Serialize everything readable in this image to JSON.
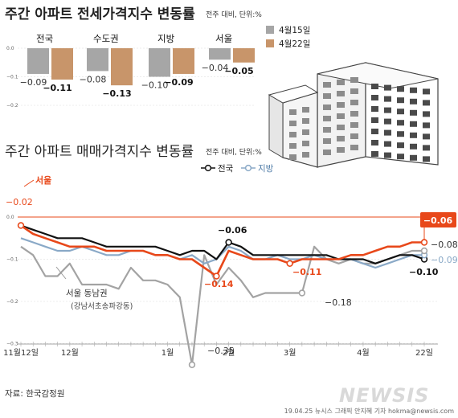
{
  "chart_data": [
    {
      "type": "bar",
      "title": "주간 아파트 전세가격지수 변동률",
      "unit_note": "전주 대비, 단위:%",
      "categories": [
        "전국",
        "수도권",
        "지방",
        "서울"
      ],
      "series": [
        {
          "name": "4월15일",
          "color": "#a6a6a6",
          "values": [
            -0.09,
            -0.08,
            -0.1,
            -0.04
          ]
        },
        {
          "name": "4월22일",
          "color": "#c8956a",
          "values": [
            -0.11,
            -0.13,
            -0.09,
            -0.05
          ]
        }
      ],
      "value_labels": [
        [
          "−0.09",
          "−0.08",
          "−0.10",
          "−0.04"
        ],
        [
          "−0.11",
          "−0.13",
          "−0.09",
          "−0.05"
        ]
      ],
      "yticks": [
        "0.0",
        "−0.1",
        "−0.2"
      ],
      "ylim": [
        -0.2,
        0.0
      ]
    },
    {
      "type": "line",
      "title": "주간 아파트 매매가격지수 변동률",
      "unit_note": "전주 대비, 단위:%",
      "x_labels": [
        "11월12일",
        "12월",
        "1월",
        "2월",
        "3월",
        "4월",
        "22일"
      ],
      "x_label_index": [
        0,
        4,
        12,
        17,
        22,
        28,
        33
      ],
      "yticks": [
        "0.0",
        "−0.1",
        "−0.2",
        "−0.3"
      ],
      "ylim": [
        -0.3,
        0.0
      ],
      "series": [
        {
          "name": "전국",
          "color": "#111111",
          "values": [
            -0.02,
            -0.03,
            -0.04,
            -0.05,
            -0.05,
            -0.05,
            -0.06,
            -0.07,
            -0.07,
            -0.07,
            -0.07,
            -0.07,
            -0.08,
            -0.09,
            -0.08,
            -0.08,
            -0.1,
            -0.06,
            -0.07,
            -0.09,
            -0.09,
            -0.09,
            -0.09,
            -0.09,
            -0.09,
            -0.09,
            -0.1,
            -0.1,
            -0.1,
            -0.11,
            -0.1,
            -0.09,
            -0.09,
            -0.1
          ]
        },
        {
          "name": "지방",
          "color": "#8aa9c7",
          "values": [
            -0.05,
            -0.06,
            -0.07,
            -0.08,
            -0.08,
            -0.07,
            -0.08,
            -0.09,
            -0.09,
            -0.08,
            -0.08,
            -0.09,
            -0.09,
            -0.1,
            -0.09,
            -0.11,
            -0.1,
            -0.07,
            -0.08,
            -0.1,
            -0.1,
            -0.09,
            -0.1,
            -0.1,
            -0.09,
            -0.1,
            -0.1,
            -0.1,
            -0.11,
            -0.12,
            -0.11,
            -0.1,
            -0.09,
            -0.09
          ]
        },
        {
          "name": "서울",
          "color": "#e8481a",
          "values": [
            -0.02,
            -0.04,
            -0.05,
            -0.06,
            -0.07,
            -0.07,
            -0.07,
            -0.08,
            -0.08,
            -0.08,
            -0.08,
            -0.09,
            -0.09,
            -0.1,
            -0.1,
            -0.12,
            -0.14,
            -0.08,
            -0.09,
            -0.1,
            -0.1,
            -0.1,
            -0.11,
            -0.1,
            -0.1,
            -0.1,
            -0.1,
            -0.09,
            -0.09,
            -0.08,
            -0.07,
            -0.07,
            -0.06,
            -0.06
          ]
        },
        {
          "name": "서울 동남권",
          "color": "#a3a3a3",
          "values": [
            -0.07,
            -0.09,
            -0.14,
            -0.14,
            -0.11,
            -0.16,
            -0.16,
            -0.16,
            -0.17,
            -0.12,
            -0.15,
            -0.15,
            -0.16,
            -0.19,
            -0.35,
            -0.09,
            -0.16,
            -0.12,
            -0.15,
            -0.19,
            -0.18,
            -0.18,
            -0.18,
            -0.18,
            -0.07,
            -0.1,
            -0.11,
            -0.1,
            -0.11,
            -0.11,
            -0.1,
            -0.09,
            -0.08,
            -0.08
          ]
        }
      ],
      "labels": {
        "seoul": "서울",
        "jeonguk": "전국",
        "jibang": "지방",
        "donam": "서울 동남권",
        "donam_sub": "(강남서초송파강동)",
        "start": "−0.02",
        "feb_peak": "−0.06",
        "seoul_low": "−0.14",
        "mar": "−0.11",
        "donam_low": "−0.35",
        "donam_mar": "−0.18",
        "end_seoul": "−0.06",
        "end_jibang": "−0.09",
        "end_gray": "−0.08",
        "end_jeonguk": "−0.10"
      }
    }
  ],
  "source": "자료: 한국감정원",
  "credit": "19.04.25 뉴시스 그래픽 안지혜 기자 hokma@newsis.com",
  "watermark": "NEWSIS"
}
